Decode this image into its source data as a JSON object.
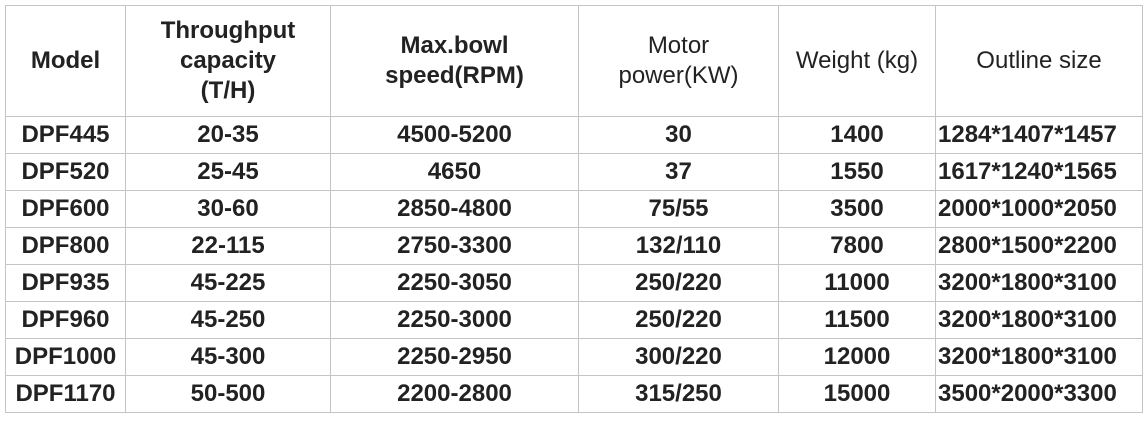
{
  "table": {
    "headers": [
      [
        "Model"
      ],
      [
        "Throughput",
        "capacity",
        "(T/H)"
      ],
      [
        "Max.bowl",
        "speed(RPM)"
      ],
      [
        "Motor",
        "power(KW)"
      ],
      [
        "Weight (kg)"
      ],
      [
        "Outline size"
      ]
    ],
    "rows": [
      [
        "DPF445",
        "20-35",
        "4500-5200",
        "30",
        "1400",
        "1284*1407*1457"
      ],
      [
        "DPF520",
        "25-45",
        "4650",
        "37",
        "1550",
        "1617*1240*1565"
      ],
      [
        "DPF600",
        "30-60",
        "2850-4800",
        "75/55",
        "3500",
        "2000*1000*2050"
      ],
      [
        "DPF800",
        "22-115",
        "2750-3300",
        "132/110",
        "7800",
        "2800*1500*2200"
      ],
      [
        "DPF935",
        "45-225",
        "2250-3050",
        "250/220",
        "11000",
        "3200*1800*3100"
      ],
      [
        "DPF960",
        "45-250",
        "2250-3000",
        "250/220",
        "11500",
        "3200*1800*3100"
      ],
      [
        "DPF1000",
        "45-300",
        "2250-2950",
        "300/220",
        "12000",
        "3200*1800*3100"
      ],
      [
        "DPF1170",
        "50-500",
        "2200-2800",
        "315/250",
        "15000",
        "3500*2000*3300"
      ]
    ]
  }
}
